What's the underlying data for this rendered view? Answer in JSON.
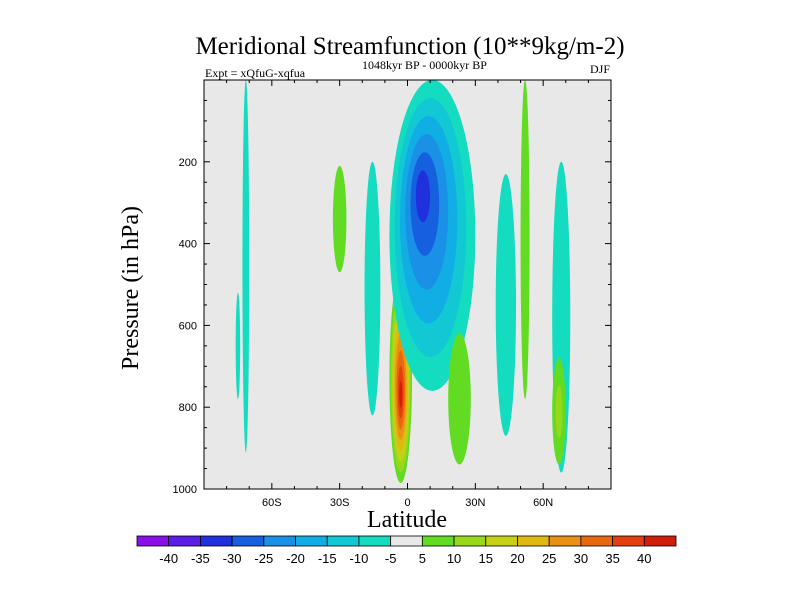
{
  "chart_data": {
    "type": "contour",
    "title": "Meridional Streamfunction (10**9kg/m-2)",
    "experiment_label": "Expt = xQfuG-xqfua",
    "period_label": "1048kyr BP - 0000kyr BP",
    "season_label": "DJF",
    "xlabel": "Latitude",
    "ylabel": "Pressure (in hPa)",
    "xlim": [
      -90,
      90
    ],
    "ylim": [
      1000,
      0
    ],
    "x_ticks": [
      -60,
      -30,
      0,
      30,
      60
    ],
    "x_tick_labels": [
      "60S",
      "30S",
      "0",
      "30N",
      "60N"
    ],
    "y_ticks": [
      200,
      400,
      600,
      800,
      1000
    ],
    "y_tick_labels": [
      "200",
      "400",
      "600",
      "800",
      "1000"
    ],
    "colorbar": {
      "levels": [
        -40,
        -35,
        -30,
        -25,
        -20,
        -15,
        -10,
        -5,
        5,
        10,
        15,
        20,
        25,
        30,
        35,
        40
      ],
      "labels": [
        "-40",
        "-35",
        "-30",
        "-25",
        "-20",
        "-15",
        "-10",
        "-5",
        "5",
        "10",
        "15",
        "20",
        "25",
        "30",
        "35",
        "40"
      ],
      "colors": [
        "#8a10e8",
        "#5a1ee6",
        "#2030dc",
        "#1660e0",
        "#1a90e6",
        "#10aee4",
        "#12c8d4",
        "#14dcc0",
        "#e8e8e8",
        "#62dc22",
        "#98d81a",
        "#c6d014",
        "#e0b812",
        "#ea9012",
        "#e86810",
        "#e23e0e",
        "#d01e0a"
      ]
    },
    "background_color": "#e8e8e8",
    "features": [
      {
        "name": "equatorial-positive-cell",
        "lat_range": [
          -8,
          2
        ],
        "p_range": [
          470,
          985
        ],
        "peak_value": 40,
        "peak_lat": -3,
        "peak_p": 775
      },
      {
        "name": "upper-negative-cell",
        "lat_range": [
          -8,
          30
        ],
        "p_range": [
          0,
          760
        ],
        "peak_value": -30,
        "peak_lat": 6,
        "peak_p": 265
      },
      {
        "name": "sh-polar-negative-band",
        "lat_range": [
          -73,
          -70
        ],
        "p_range": [
          0,
          910
        ],
        "peak_value": -5
      },
      {
        "name": "sh-negative-sliver",
        "lat_range": [
          -76,
          -74
        ],
        "p_range": [
          520,
          780
        ],
        "peak_value": -5
      },
      {
        "name": "sh-subtropic-positive",
        "lat_range": [
          -33,
          -27
        ],
        "p_range": [
          210,
          470
        ],
        "peak_value": 5
      },
      {
        "name": "sh-subtropic-negative",
        "lat_range": [
          -19,
          -12
        ],
        "p_range": [
          200,
          820
        ],
        "peak_value": -5
      },
      {
        "name": "nh-positive-near-20n",
        "lat_range": [
          18,
          28
        ],
        "p_range": [
          620,
          940
        ],
        "peak_value": 5
      },
      {
        "name": "nh-negative-near-45n",
        "lat_range": [
          39,
          48
        ],
        "p_range": [
          230,
          870
        ],
        "peak_value": -5
      },
      {
        "name": "nh-positive-near-52n",
        "lat_range": [
          50,
          54
        ],
        "p_range": [
          0,
          780
        ],
        "peak_value": 5
      },
      {
        "name": "nh-negative-near-68n",
        "lat_range": [
          64,
          72
        ],
        "p_range": [
          200,
          960
        ],
        "peak_value": -5
      },
      {
        "name": "nh-positive-near-68n",
        "lat_range": [
          64,
          70
        ],
        "p_range": [
          680,
          940
        ],
        "peak_value": 10
      }
    ]
  }
}
